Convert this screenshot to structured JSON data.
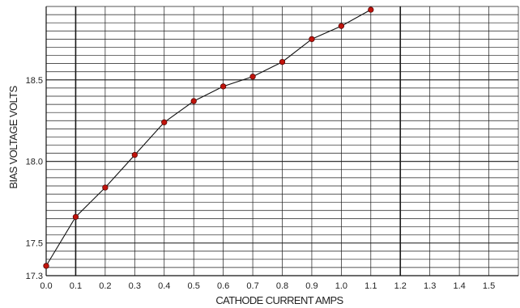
{
  "chart_data": {
    "type": "line",
    "title": "",
    "xlabel": "CATHODE CURRENT AMPS",
    "ylabel": "BIAS VOLTAGE VOLTS",
    "xlim": [
      0.0,
      1.6
    ],
    "ylim": [
      17.3,
      18.95
    ],
    "x_ticks": [
      "0.0",
      "0.1",
      "0.2",
      "0.3",
      "0.4",
      "0.5",
      "0.6",
      "0.7",
      "0.8",
      "0.9",
      "1.0",
      "1.1",
      "1.2",
      "1.3",
      "1.4",
      "1.5"
    ],
    "y_ticks": [
      {
        "value": 17.3,
        "label": "17.3"
      },
      {
        "value": 17.5,
        "label": "17.5"
      },
      {
        "value": 18.0,
        "label": "18.0"
      },
      {
        "value": 18.5,
        "label": "18.5"
      }
    ],
    "x_grid_step": 0.1,
    "y_grid_step": 0.05,
    "grid": true,
    "legend": "none",
    "marker_color": "#c0140c",
    "line_color": "#111111",
    "points": [
      {
        "x": 0.0,
        "y": 17.36
      },
      {
        "x": 0.1,
        "y": 17.66
      },
      {
        "x": 0.2,
        "y": 17.84
      },
      {
        "x": 0.3,
        "y": 18.04
      },
      {
        "x": 0.4,
        "y": 18.24
      },
      {
        "x": 0.5,
        "y": 18.37
      },
      {
        "x": 0.6,
        "y": 18.46
      },
      {
        "x": 0.7,
        "y": 18.52
      },
      {
        "x": 0.8,
        "y": 18.61
      },
      {
        "x": 0.9,
        "y": 18.75
      },
      {
        "x": 1.0,
        "y": 18.83
      },
      {
        "x": 1.1,
        "y": 18.93
      }
    ]
  }
}
